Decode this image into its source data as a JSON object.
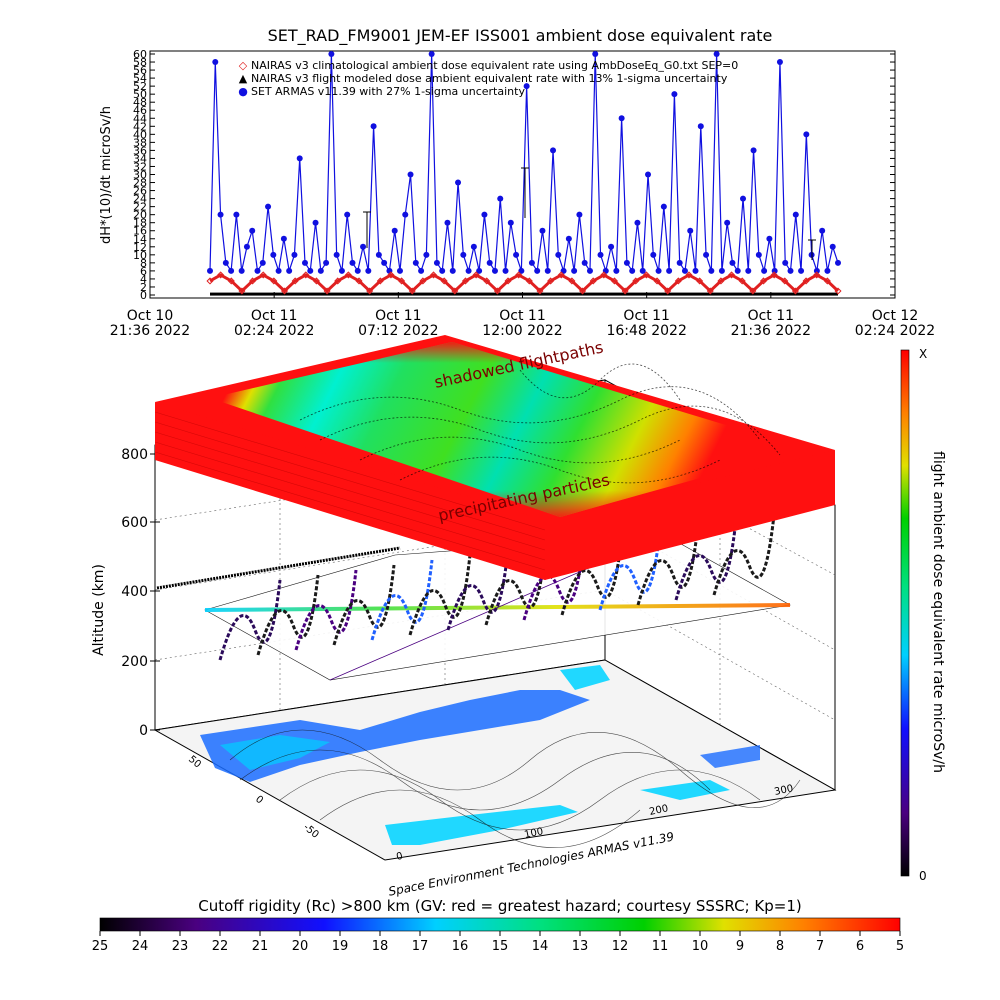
{
  "chart_data": [
    {
      "type": "line",
      "title": "SET_RAD_FM9001  JEM-EF ISS001 ambient dose equivalent rate",
      "ylabel": "dH*(10)/dt microSv/h",
      "ylim": [
        0,
        60
      ],
      "yticks": [
        "0",
        "2",
        "4",
        "6",
        "8",
        "10",
        "12",
        "14",
        "16",
        "18",
        "20",
        "22",
        "24",
        "26",
        "28",
        "30",
        "32",
        "34",
        "36",
        "38",
        "40",
        "42",
        "44",
        "46",
        "48",
        "50",
        "52",
        "54",
        "56",
        "58",
        "60"
      ],
      "xticks": [
        {
          "date": "Oct 10",
          "time": "21:36 2022"
        },
        {
          "date": "Oct 11",
          "time": "02:24 2022"
        },
        {
          "date": "Oct 11",
          "time": "07:12 2022"
        },
        {
          "date": "Oct 11",
          "time": "12:00 2022"
        },
        {
          "date": "Oct 11",
          "time": "16:48 2022"
        },
        {
          "date": "Oct 11",
          "time": "21:36 2022"
        },
        {
          "date": "Oct 12",
          "time": "02:24 2022"
        }
      ],
      "legend": [
        {
          "symbol": "◇",
          "color": "#e02020",
          "label": "NAIRAS v3 climatological ambient dose equivalent rate using AmbDoseEq_G0.txt SEP=0"
        },
        {
          "symbol": "▲",
          "color": "#000000",
          "label": "NAIRAS v3 flight modeled dose ambient equivalent rate with 13% 1-sigma uncertainty"
        },
        {
          "symbol": "●",
          "color": "#1010e0",
          "label": "SET ARMAS v11.39 with 27% 1-sigma uncertainty"
        }
      ],
      "legend_position": "top",
      "series": [
        {
          "name": "SET ARMAS v11.39 with 27% 1-sigma uncertainty",
          "color": "#1010e0",
          "values": [
            6,
            58,
            20,
            8,
            6,
            20,
            6,
            12,
            16,
            6,
            8,
            22,
            10,
            6,
            14,
            6,
            10,
            34,
            8,
            6,
            18,
            6,
            8,
            60,
            10,
            6,
            20,
            8,
            6,
            12,
            6,
            42,
            10,
            8,
            6,
            16,
            6,
            20,
            30,
            8,
            6,
            10,
            60,
            8,
            6,
            18,
            6,
            28,
            10,
            6,
            12,
            6,
            20,
            8,
            6,
            24,
            6,
            18,
            10,
            6,
            52,
            8,
            6,
            16,
            6,
            36,
            10,
            6,
            14,
            6,
            20,
            8,
            6,
            60,
            10,
            6,
            12,
            6,
            44,
            8,
            6,
            18,
            6,
            30,
            10,
            6,
            22,
            6,
            50,
            8,
            6,
            16,
            6,
            42,
            10,
            6,
            60,
            6,
            18,
            8,
            6,
            24,
            6,
            36,
            10,
            6,
            14,
            6,
            58,
            8,
            6,
            20,
            6,
            40,
            10,
            6,
            16,
            6,
            12,
            8
          ]
        },
        {
          "name": "NAIRAS v3 climatological ambient dose equivalent rate using AmbDoseEq_G0.txt SEP=0",
          "color": "#e02020",
          "values": [
            3.5,
            5,
            3.5,
            1,
            3.5,
            5,
            3.5,
            1,
            3.5,
            5,
            3.5,
            1,
            3.5,
            5,
            3.5,
            1,
            3.5,
            5,
            3.5,
            1,
            3.5,
            5,
            3.5,
            1,
            3.5,
            5,
            3.5,
            1,
            3.5,
            5,
            3.5,
            1,
            3.5,
            5,
            3.5,
            1,
            3.5,
            5,
            3.5,
            1,
            3.5,
            5,
            3.5,
            1,
            3.5,
            5,
            3.5,
            1,
            3.5,
            5,
            3.5,
            1,
            3.5,
            5,
            3.5,
            1,
            3.5,
            5,
            3.5,
            1
          ]
        }
      ]
    },
    {
      "type": "heatmap",
      "zlabel": "Altitude (km)",
      "zticks": [
        "0",
        "200",
        "400",
        "600",
        "800"
      ],
      "xticks_floor": [
        "0",
        "100",
        "200",
        "300"
      ],
      "yticks_floor": [
        "-50",
        "0",
        "50"
      ],
      "annotations": [
        "shadowed flightpaths",
        "precipitating particles",
        "Space Environment Technologies ARMAS v11.39"
      ],
      "vertical_colorbar": {
        "label": "flight ambient dose equivalent rate microSv/h",
        "top_label": "X",
        "bottom_label": "0"
      },
      "horizontal_colorbar": {
        "label": "Cutoff rigidity (Rc) >800 km (GV: red = greatest hazard; courtesy SSSRC; Kp=1)",
        "ticks": [
          "25",
          "24",
          "23",
          "22",
          "21",
          "20",
          "19",
          "18",
          "17",
          "16",
          "15",
          "14",
          "13",
          "12",
          "11",
          "10",
          "9",
          "8",
          "7",
          "6",
          "5"
        ]
      }
    }
  ]
}
